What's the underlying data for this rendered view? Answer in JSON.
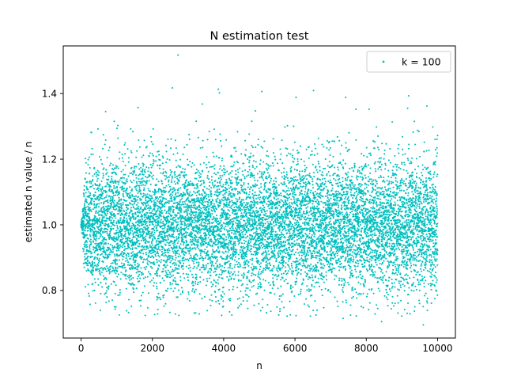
{
  "chart_data": {
    "type": "scatter",
    "title": "N estimation test",
    "xlabel": "n",
    "ylabel": "estimated n value / n",
    "xlim": [
      -500,
      10500
    ],
    "ylim": [
      0.655,
      1.545
    ],
    "xticks": [
      0,
      2000,
      4000,
      6000,
      8000,
      10000
    ],
    "xtick_labels": [
      "0",
      "2000",
      "4000",
      "6000",
      "8000",
      "10000"
    ],
    "yticks": [
      0.8,
      1.0,
      1.2,
      1.4
    ],
    "ytick_labels": [
      "0.8",
      "1.0",
      "1.2",
      "1.4"
    ],
    "grid": false,
    "legend_placement": "top-right",
    "point_color": "#00bfbf",
    "series": [
      {
        "name": "k = 100",
        "summary": {
          "x_range": [
            0,
            10000
          ],
          "point_count": 10000,
          "center": 1.0,
          "spread_sd": 0.1
        },
        "points": [
          [
            2720,
            1.517
          ],
          [
            2560,
            1.417
          ],
          [
            3850,
            1.413
          ],
          [
            3880,
            1.402
          ],
          [
            6520,
            1.409
          ],
          [
            7420,
            1.388
          ],
          [
            6030,
            1.388
          ],
          [
            9190,
            1.393
          ],
          [
            5070,
            1.406
          ],
          [
            3400,
            1.368
          ],
          [
            7710,
            1.352
          ],
          [
            9160,
            1.355
          ],
          [
            9700,
            1.362
          ],
          [
            1600,
            1.357
          ],
          [
            690,
            1.345
          ],
          [
            930,
            1.315
          ],
          [
            4890,
            1.347
          ],
          [
            8080,
            1.352
          ],
          [
            9930,
            1.26
          ],
          [
            10000,
            1.272
          ],
          [
            9600,
            0.695
          ],
          [
            8430,
            0.705
          ],
          [
            7350,
            0.715
          ],
          [
            2490,
            0.733
          ],
          [
            5200,
            0.732
          ],
          [
            960,
            0.743
          ],
          [
            940,
            0.75
          ],
          [
            5690,
            0.748
          ],
          [
            7860,
            0.751
          ],
          [
            4490,
            0.758
          ],
          [
            9920,
            0.775
          ],
          [
            380,
            0.8
          ],
          [
            8770,
            0.753
          ],
          [
            8100,
            0.762
          ],
          [
            6560,
            0.768
          ],
          [
            0,
            1.0
          ],
          [
            40,
            1.0
          ],
          [
            80,
            1.0
          ]
        ]
      }
    ]
  }
}
